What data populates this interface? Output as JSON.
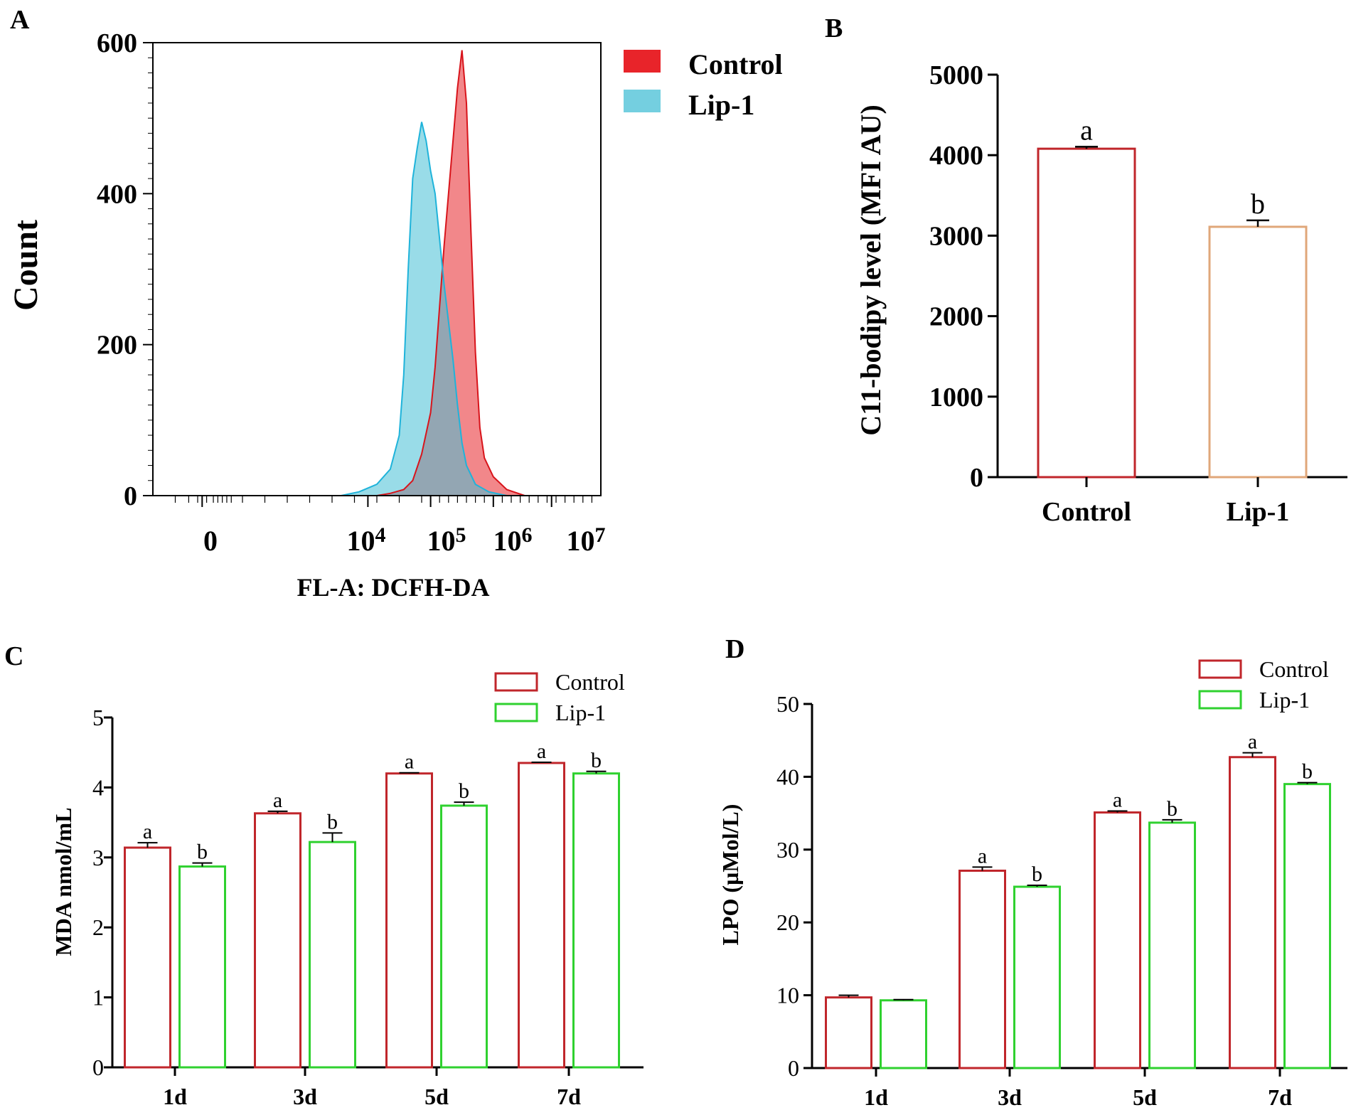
{
  "colors": {
    "control_hist": "#e8242a",
    "lip1_hist": "#45bfd6",
    "overlap_hist": "#7d9bb3",
    "control_bar": "#c0262b",
    "lip1_bar_b": "#e0a77a",
    "lip1_bar": "#2fd12f",
    "axis": "#000000"
  },
  "chart_data": [
    {
      "panel": "A",
      "type": "area",
      "xlabel": "FL-A: DCFH-DA",
      "ylabel": "Count",
      "ylim": [
        0,
        600
      ],
      "yticks": [
        "0",
        "200",
        "400",
        "600"
      ],
      "xticks": [
        {
          "base": "0",
          "exp": ""
        },
        {
          "base": "10",
          "exp": "4"
        },
        {
          "base": "10",
          "exp": "5"
        },
        {
          "base": "10",
          "exp": "6"
        },
        {
          "base": "10",
          "exp": "7"
        }
      ],
      "legend": [
        "Control",
        "Lip-1"
      ],
      "series": [
        {
          "name": "Control",
          "x": [
            0.5,
            0.53,
            0.56,
            0.58,
            0.6,
            0.62,
            0.63,
            0.64,
            0.65,
            0.66,
            0.67,
            0.68,
            0.69,
            0.7,
            0.71,
            0.72,
            0.73,
            0.74,
            0.76,
            0.79,
            0.83
          ],
          "y": [
            0,
            3,
            8,
            20,
            55,
            110,
            170,
            250,
            330,
            400,
            470,
            540,
            590,
            520,
            350,
            190,
            90,
            50,
            25,
            8,
            0
          ]
        },
        {
          "name": "Lip-1",
          "x": [
            0.42,
            0.46,
            0.5,
            0.53,
            0.55,
            0.56,
            0.57,
            0.58,
            0.59,
            0.6,
            0.61,
            0.62,
            0.63,
            0.64,
            0.65,
            0.66,
            0.67,
            0.68,
            0.69,
            0.7,
            0.72,
            0.75,
            0.79
          ],
          "y": [
            0,
            5,
            15,
            35,
            80,
            160,
            300,
            420,
            460,
            495,
            470,
            430,
            400,
            340,
            280,
            230,
            180,
            120,
            70,
            40,
            15,
            5,
            0
          ]
        }
      ]
    },
    {
      "panel": "B",
      "type": "bar",
      "ylabel": "C11-bodipy level (MFI AU)",
      "ylim": [
        0,
        5000
      ],
      "yticks": [
        "0",
        "1000",
        "2000",
        "3000",
        "4000",
        "5000"
      ],
      "categories": [
        "Control",
        "Lip-1"
      ],
      "values": [
        4080,
        3110
      ],
      "errors": [
        25,
        80
      ],
      "letters": [
        "a",
        "b"
      ]
    },
    {
      "panel": "C",
      "type": "bar",
      "ylabel": "MDA nmol/mL",
      "ylim": [
        0,
        5
      ],
      "yticks": [
        "0",
        "1",
        "2",
        "3",
        "4",
        "5"
      ],
      "categories": [
        "1d",
        "3d",
        "5d",
        "7d"
      ],
      "legend": [
        "Control",
        "Lip-1"
      ],
      "series": [
        {
          "name": "Control",
          "values": [
            3.14,
            3.63,
            4.2,
            4.35
          ],
          "errors": [
            0.07,
            0.03,
            0.01,
            0.01
          ],
          "letters": [
            "a",
            "a",
            "a",
            "a"
          ]
        },
        {
          "name": "Lip-1",
          "values": [
            2.87,
            3.22,
            3.74,
            4.2
          ],
          "errors": [
            0.05,
            0.13,
            0.05,
            0.03
          ],
          "letters": [
            "b",
            "b",
            "b",
            "b"
          ]
        }
      ]
    },
    {
      "panel": "D",
      "type": "bar",
      "ylabel": "LPO (µMol/L)",
      "ylim": [
        0,
        50
      ],
      "yticks": [
        "0",
        "10",
        "20",
        "30",
        "40",
        "50"
      ],
      "categories": [
        "1d",
        "3d",
        "5d",
        "7d"
      ],
      "legend": [
        "Control",
        "Lip-1"
      ],
      "series": [
        {
          "name": "Control",
          "values": [
            9.7,
            27.1,
            35.1,
            42.7
          ],
          "errors": [
            0.3,
            0.5,
            0.2,
            0.6
          ],
          "letters": [
            "",
            "a",
            "a",
            "a"
          ]
        },
        {
          "name": "Lip-1",
          "values": [
            9.3,
            24.9,
            33.7,
            39.0
          ],
          "errors": [
            0.1,
            0.2,
            0.4,
            0.2
          ],
          "letters": [
            "",
            "b",
            "b",
            "b"
          ]
        }
      ]
    }
  ]
}
